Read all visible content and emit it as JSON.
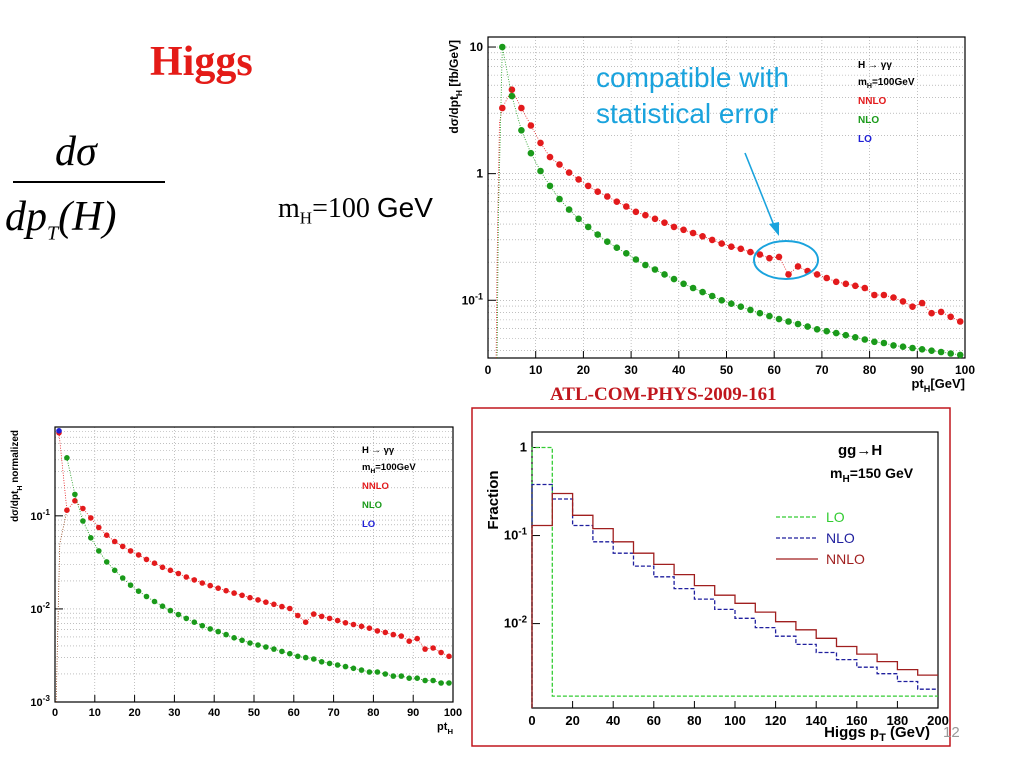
{
  "slide": {
    "title": "Higgs",
    "formula": {
      "numerator": "dσ",
      "denominator_main": "dp",
      "denominator_sub": "T",
      "denominator_tail": "(H)"
    },
    "mass_label": {
      "prefix": "m",
      "sub": "H",
      "value": "=100 ",
      "unit": "GeV"
    },
    "reference": "ATL-COM-PHYS-2009-161",
    "page_number": "12",
    "annotation": "compatible with statistical error",
    "colors": {
      "title": "#e41b17",
      "reference": "#c0161d",
      "annotation": "#1aa3dd",
      "nnlo": "#e31a1c",
      "nlo": "#1a9a1a",
      "lo": "#1f1fd6",
      "frame": "#c0161d"
    }
  },
  "chart_data": [
    {
      "type": "scatter",
      "ylabel": "dσ/dpt_H [fb/GeV]",
      "xlabel": "pt_H[GeV]",
      "xlim": [
        0,
        100
      ],
      "ylim": [
        0.035,
        12
      ],
      "yscale": "log",
      "grid": true,
      "xticks": [
        "0",
        "10",
        "20",
        "30",
        "40",
        "50",
        "60",
        "70",
        "80",
        "90",
        "100"
      ],
      "yticks": [
        {
          "v": 10,
          "label": "10"
        },
        {
          "v": 1,
          "label": "1"
        },
        {
          "v": 0.1,
          "label": "10-1"
        }
      ],
      "legend": {
        "title": "H → γγ",
        "subtitle": "mH=100GeV",
        "entries": [
          {
            "name": "NNLO",
            "color": "#e31a1c"
          },
          {
            "name": "NLO",
            "color": "#1a9a1a"
          },
          {
            "name": "LO",
            "color": "#1f1fd6"
          }
        ]
      },
      "series": [
        {
          "name": "NNLO",
          "color": "#e31a1c",
          "points": [
            [
              3,
              3.3
            ],
            [
              5,
              4.6
            ],
            [
              7,
              3.3
            ],
            [
              9,
              2.4
            ],
            [
              11,
              1.75
            ],
            [
              13,
              1.35
            ],
            [
              15,
              1.18
            ],
            [
              17,
              1.02
            ],
            [
              19,
              0.9
            ],
            [
              21,
              0.8
            ],
            [
              23,
              0.72
            ],
            [
              25,
              0.66
            ],
            [
              27,
              0.6
            ],
            [
              29,
              0.55
            ],
            [
              31,
              0.5
            ],
            [
              33,
              0.47
            ],
            [
              35,
              0.44
            ],
            [
              37,
              0.41
            ],
            [
              39,
              0.38
            ],
            [
              41,
              0.36
            ],
            [
              43,
              0.34
            ],
            [
              45,
              0.32
            ],
            [
              47,
              0.3
            ],
            [
              49,
              0.28
            ],
            [
              51,
              0.265
            ],
            [
              53,
              0.255
            ],
            [
              55,
              0.24
            ],
            [
              57,
              0.23
            ],
            [
              59,
              0.215
            ],
            [
              61,
              0.22
            ],
            [
              63,
              0.16
            ],
            [
              65,
              0.185
            ],
            [
              67,
              0.17
            ],
            [
              69,
              0.16
            ],
            [
              71,
              0.15
            ],
            [
              73,
              0.14
            ],
            [
              75,
              0.135
            ],
            [
              77,
              0.13
            ],
            [
              79,
              0.125
            ],
            [
              81,
              0.11
            ],
            [
              83,
              0.11
            ],
            [
              85,
              0.105
            ],
            [
              87,
              0.098
            ],
            [
              89,
              0.089
            ],
            [
              91,
              0.095
            ],
            [
              93,
              0.079
            ],
            [
              95,
              0.081
            ],
            [
              97,
              0.074
            ],
            [
              99,
              0.068
            ]
          ]
        },
        {
          "name": "NLO",
          "color": "#1a9a1a",
          "points": [
            [
              3,
              10
            ],
            [
              5,
              4.1
            ],
            [
              7,
              2.2
            ],
            [
              9,
              1.45
            ],
            [
              11,
              1.05
            ],
            [
              13,
              0.8
            ],
            [
              15,
              0.63
            ],
            [
              17,
              0.52
            ],
            [
              19,
              0.44
            ],
            [
              21,
              0.38
            ],
            [
              23,
              0.33
            ],
            [
              25,
              0.29
            ],
            [
              27,
              0.26
            ],
            [
              29,
              0.235
            ],
            [
              31,
              0.21
            ],
            [
              33,
              0.19
            ],
            [
              35,
              0.175
            ],
            [
              37,
              0.16
            ],
            [
              39,
              0.147
            ],
            [
              41,
              0.135
            ],
            [
              43,
              0.125
            ],
            [
              45,
              0.116
            ],
            [
              47,
              0.108
            ],
            [
              49,
              0.1
            ],
            [
              51,
              0.094
            ],
            [
              53,
              0.089
            ],
            [
              55,
              0.084
            ],
            [
              57,
              0.079
            ],
            [
              59,
              0.075
            ],
            [
              61,
              0.071
            ],
            [
              63,
              0.068
            ],
            [
              65,
              0.065
            ],
            [
              67,
              0.062
            ],
            [
              69,
              0.059
            ],
            [
              71,
              0.057
            ],
            [
              73,
              0.055
            ],
            [
              75,
              0.053
            ],
            [
              77,
              0.051
            ],
            [
              79,
              0.049
            ],
            [
              81,
              0.047
            ],
            [
              83,
              0.046
            ],
            [
              85,
              0.044
            ],
            [
              87,
              0.043
            ],
            [
              89,
              0.042
            ],
            [
              91,
              0.041
            ],
            [
              93,
              0.04
            ],
            [
              95,
              0.039
            ],
            [
              97,
              0.038
            ],
            [
              99,
              0.037
            ]
          ]
        }
      ]
    },
    {
      "type": "scatter",
      "ylabel": "dσ/dpt_H normalized",
      "xlabel": "pt_H",
      "xlim": [
        0,
        100
      ],
      "ylim": [
        0.001,
        0.9
      ],
      "yscale": "log",
      "grid": true,
      "xticks": [
        "0",
        "10",
        "20",
        "30",
        "40",
        "50",
        "60",
        "70",
        "80",
        "90",
        "100"
      ],
      "yticks": [
        {
          "v": 0.1,
          "label": "10-1"
        },
        {
          "v": 0.01,
          "label": "10-2"
        },
        {
          "v": 0.001,
          "label": "10-3"
        }
      ],
      "legend": {
        "title": "H → γγ",
        "subtitle": "mH=100GeV",
        "entries": [
          {
            "name": "NNLO",
            "color": "#e31a1c"
          },
          {
            "name": "NLO",
            "color": "#1a9a1a"
          },
          {
            "name": "LO",
            "color": "#1f1fd6"
          }
        ]
      },
      "series": [
        {
          "name": "NNLO",
          "color": "#e31a1c",
          "points": [
            [
              1,
              0.78
            ],
            [
              3,
              0.115
            ],
            [
              5,
              0.145
            ],
            [
              7,
              0.12
            ],
            [
              9,
              0.095
            ],
            [
              11,
              0.075
            ],
            [
              13,
              0.062
            ],
            [
              15,
              0.053
            ],
            [
              17,
              0.047
            ],
            [
              19,
              0.042
            ],
            [
              21,
              0.038
            ],
            [
              23,
              0.034
            ],
            [
              25,
              0.031
            ],
            [
              27,
              0.028
            ],
            [
              29,
              0.026
            ],
            [
              31,
              0.024
            ],
            [
              33,
              0.022
            ],
            [
              35,
              0.0205
            ],
            [
              37,
              0.019
            ],
            [
              39,
              0.0178
            ],
            [
              41,
              0.0167
            ],
            [
              43,
              0.0157
            ],
            [
              45,
              0.0148
            ],
            [
              47,
              0.014
            ],
            [
              49,
              0.0132
            ],
            [
              51,
              0.0125
            ],
            [
              53,
              0.0118
            ],
            [
              55,
              0.0112
            ],
            [
              57,
              0.0106
            ],
            [
              59,
              0.0101
            ],
            [
              61,
              0.0085
            ],
            [
              63,
              0.0072
            ],
            [
              65,
              0.0088
            ],
            [
              67,
              0.0083
            ],
            [
              69,
              0.0079
            ],
            [
              71,
              0.0075
            ],
            [
              73,
              0.0071
            ],
            [
              75,
              0.0068
            ],
            [
              77,
              0.0065
            ],
            [
              79,
              0.0062
            ],
            [
              81,
              0.0058
            ],
            [
              83,
              0.0056
            ],
            [
              85,
              0.0053
            ],
            [
              87,
              0.0051
            ],
            [
              89,
              0.0045
            ],
            [
              91,
              0.0048
            ],
            [
              93,
              0.0037
            ],
            [
              95,
              0.0038
            ],
            [
              97,
              0.0034
            ],
            [
              99,
              0.0031
            ]
          ]
        },
        {
          "name": "NLO",
          "color": "#1a9a1a",
          "points": [
            [
              3,
              0.42
            ],
            [
              5,
              0.17
            ],
            [
              7,
              0.088
            ],
            [
              9,
              0.058
            ],
            [
              11,
              0.042
            ],
            [
              13,
              0.032
            ],
            [
              15,
              0.026
            ],
            [
              17,
              0.0215
            ],
            [
              19,
              0.018
            ],
            [
              21,
              0.0155
            ],
            [
              23,
              0.0136
            ],
            [
              25,
              0.012
            ],
            [
              27,
              0.0107
            ],
            [
              29,
              0.0096
            ],
            [
              31,
              0.0087
            ],
            [
              33,
              0.0079
            ],
            [
              35,
              0.0072
            ],
            [
              37,
              0.0066
            ],
            [
              39,
              0.0061
            ],
            [
              41,
              0.0057
            ],
            [
              43,
              0.0053
            ],
            [
              45,
              0.0049
            ],
            [
              47,
              0.0046
            ],
            [
              49,
              0.0043
            ],
            [
              51,
              0.0041
            ],
            [
              53,
              0.0039
            ],
            [
              55,
              0.0037
            ],
            [
              57,
              0.0035
            ],
            [
              59,
              0.0033
            ],
            [
              61,
              0.0031
            ],
            [
              63,
              0.003
            ],
            [
              65,
              0.0029
            ],
            [
              67,
              0.0027
            ],
            [
              69,
              0.0026
            ],
            [
              71,
              0.0025
            ],
            [
              73,
              0.0024
            ],
            [
              75,
              0.0023
            ],
            [
              77,
              0.0022
            ],
            [
              79,
              0.0021
            ],
            [
              81,
              0.0021
            ],
            [
              83,
              0.002
            ],
            [
              85,
              0.0019
            ],
            [
              87,
              0.0019
            ],
            [
              89,
              0.0018
            ],
            [
              91,
              0.0018
            ],
            [
              93,
              0.0017
            ],
            [
              95,
              0.0017
            ],
            [
              97,
              0.0016
            ],
            [
              99,
              0.0016
            ]
          ]
        },
        {
          "name": "LO",
          "color": "#1f1fd6",
          "points": [
            [
              1,
              0.82
            ]
          ]
        }
      ]
    },
    {
      "type": "line",
      "ylabel": "Fraction",
      "xlabel": "Higgs p_T (GeV)",
      "xlim": [
        0,
        200
      ],
      "ylim": [
        0.0011,
        1.5
      ],
      "yscale": "log",
      "grid": false,
      "xticks": [
        "0",
        "20",
        "40",
        "60",
        "80",
        "100",
        "120",
        "140",
        "160",
        "180",
        "200"
      ],
      "yticks": [
        {
          "v": 1,
          "label": "1"
        },
        {
          "v": 0.1,
          "label": "10-1"
        },
        {
          "v": 0.01,
          "label": "10-2"
        }
      ],
      "legend": {
        "title": "gg→H",
        "subtitle": "mH=150 GeV",
        "entries": [
          {
            "name": "LO",
            "color": "#33cc33"
          },
          {
            "name": "NLO",
            "color": "#1f1f9e"
          },
          {
            "name": "NNLO",
            "color": "#a01f1f"
          }
        ]
      },
      "bin_edges": [
        0,
        10,
        20,
        30,
        40,
        50,
        60,
        70,
        80,
        90,
        100,
        110,
        120,
        130,
        140,
        150,
        160,
        170,
        180,
        190,
        200
      ],
      "series": [
        {
          "name": "LO",
          "color": "#33cc33",
          "style": "dashed",
          "values": [
            1.0,
            0.0015,
            0.0015,
            0.0015,
            0.0015,
            0.0015,
            0.0015,
            0.0015,
            0.0015,
            0.0015,
            0.0015,
            0.0015,
            0.0015,
            0.0015,
            0.0015,
            0.0015,
            0.0015,
            0.0015,
            0.0015,
            0.0015
          ]
        },
        {
          "name": "NLO",
          "color": "#1f1f9e",
          "style": "dashed",
          "values": [
            0.38,
            0.26,
            0.13,
            0.085,
            0.063,
            0.045,
            0.034,
            0.025,
            0.019,
            0.0145,
            0.0115,
            0.009,
            0.0072,
            0.0058,
            0.0047,
            0.0039,
            0.0032,
            0.0027,
            0.0022,
            0.0018
          ]
        },
        {
          "name": "NNLO",
          "color": "#a01f1f",
          "style": "solid",
          "values": [
            0.13,
            0.3,
            0.17,
            0.12,
            0.085,
            0.063,
            0.047,
            0.036,
            0.027,
            0.021,
            0.017,
            0.0135,
            0.0105,
            0.0085,
            0.0068,
            0.0055,
            0.0045,
            0.0037,
            0.003,
            0.0026
          ]
        }
      ]
    }
  ]
}
